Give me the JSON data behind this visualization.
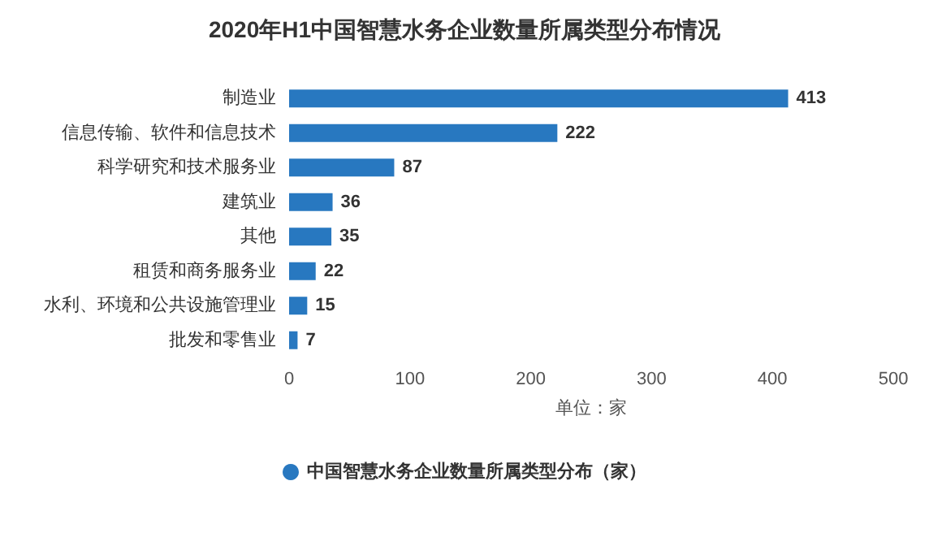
{
  "chart_data": {
    "type": "bar",
    "orientation": "horizontal",
    "title": "2020年H1中国智慧水务企业数量所属类型分布情况",
    "categories": [
      "制造业",
      "信息传输、软件和信息技术",
      "科学研究和技术服务业",
      "建筑业",
      "其他",
      "租赁和商务服务业",
      "水利、环境和公共设施管理业",
      "批发和零售业"
    ],
    "series": [
      {
        "name": "中国智慧水务企业数量所属类型分布（家）",
        "color": "#2878c0",
        "values": [
          413,
          222,
          87,
          36,
          35,
          22,
          15,
          7
        ]
      }
    ],
    "xlim": [
      0,
      500
    ],
    "xticks": [
      0,
      100,
      200,
      300,
      400,
      500
    ],
    "xlabel": "单位：家",
    "data_labels": true,
    "legend": "bottom",
    "grid": false
  }
}
